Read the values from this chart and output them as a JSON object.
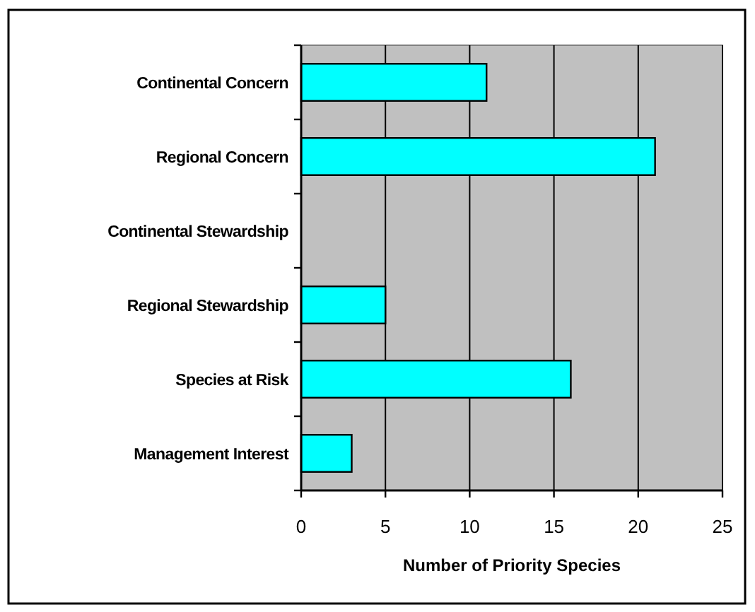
{
  "chart_data": {
    "type": "bar",
    "orientation": "horizontal",
    "xlabel": "Number of Priority Species",
    "categories": [
      "Continental Concern",
      "Regional Concern",
      "Continental Stewardship",
      "Regional Stewardship",
      "Species at Risk",
      "Management Interest"
    ],
    "values": [
      11,
      21,
      0,
      5,
      16,
      3
    ],
    "color": "#00ffff",
    "xlim": [
      0,
      25
    ],
    "xticks": [
      0,
      5,
      10,
      15,
      20,
      25
    ],
    "grid": "x"
  }
}
